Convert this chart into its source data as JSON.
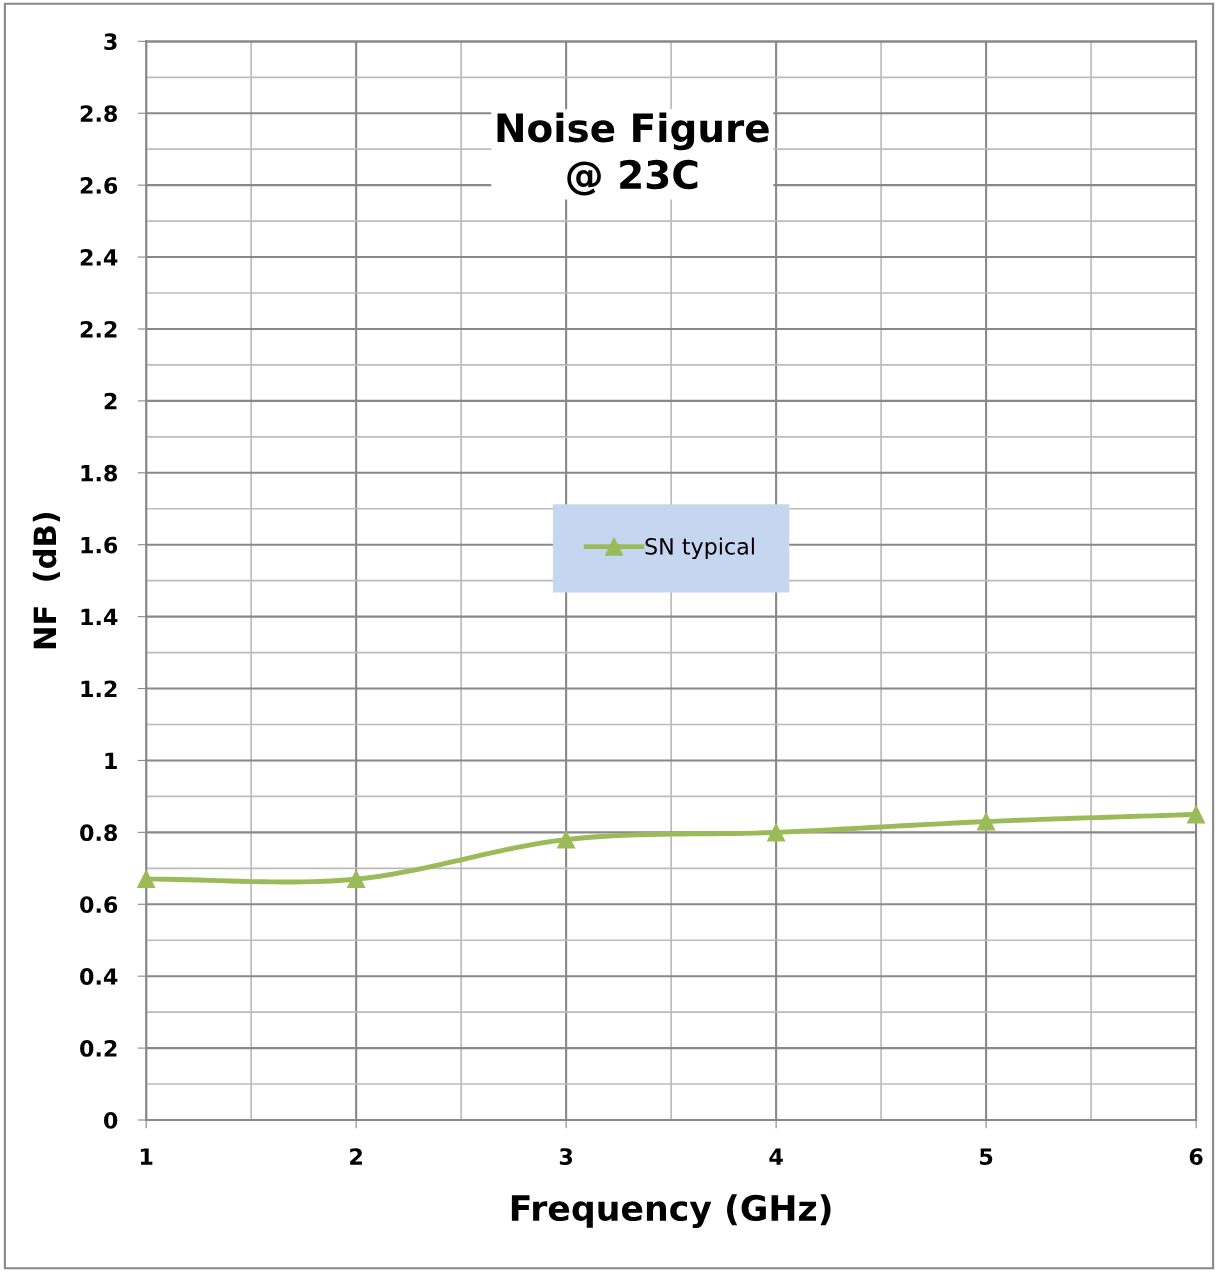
{
  "chart_data": {
    "type": "line",
    "title": "Noise Figure\n@ 23C",
    "xlabel": "Frequency (GHz)",
    "ylabel": "NF  (dB)",
    "x": [
      1,
      2,
      3,
      4,
      5,
      6
    ],
    "series": [
      {
        "name": "SN typical",
        "color": "#9bbb59",
        "values": [
          0.67,
          0.67,
          0.78,
          0.8,
          0.83,
          0.85
        ]
      }
    ],
    "xlim": [
      1,
      6
    ],
    "xticks": [
      1,
      2,
      3,
      4,
      5,
      6
    ],
    "ylim": [
      0,
      3
    ],
    "yticks": [
      0,
      0.2,
      0.4,
      0.6,
      0.8,
      1,
      1.2,
      1.4,
      1.6,
      1.8,
      2,
      2.2,
      2.4,
      2.6,
      2.8,
      3
    ],
    "grid": true,
    "legend": "center",
    "marker": "triangle",
    "line_style": "solid"
  }
}
